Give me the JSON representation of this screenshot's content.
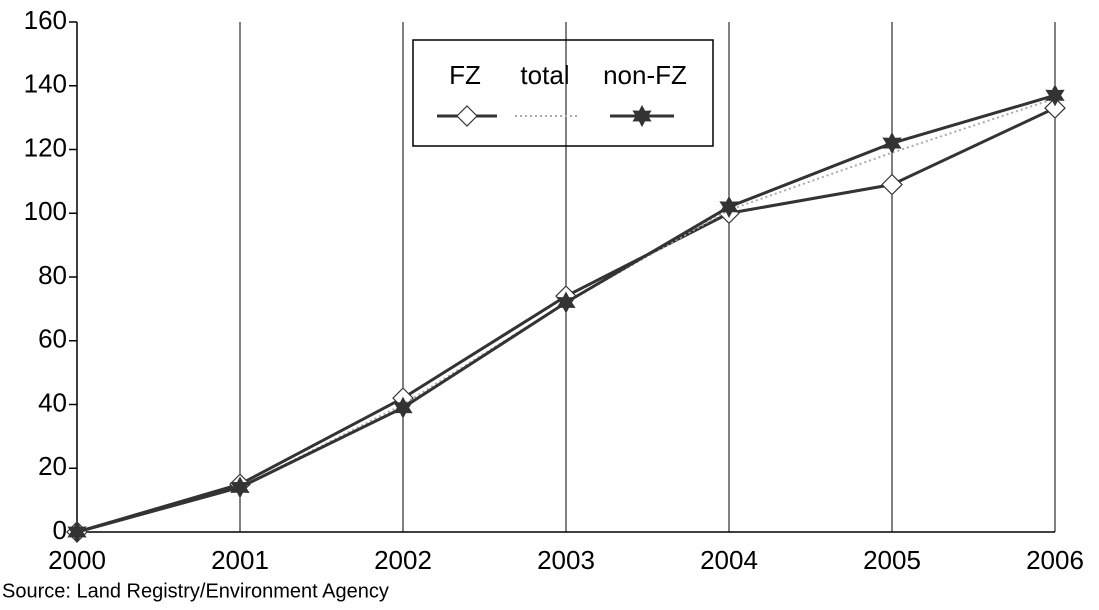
{
  "chart_data": {
    "type": "line",
    "categories": [
      "2000",
      "2001",
      "2002",
      "2003",
      "2004",
      "2005",
      "2006"
    ],
    "series": [
      {
        "name": "FZ",
        "color": "#333333",
        "marker": "diamond",
        "dashed": false,
        "values": [
          0,
          15,
          42,
          74,
          100,
          109,
          133
        ]
      },
      {
        "name": "total",
        "color": "#aaaaaa",
        "marker": "none",
        "dashed": true,
        "values": [
          0,
          14,
          40,
          72,
          101,
          119,
          136
        ]
      },
      {
        "name": "non-FZ",
        "color": "#333333",
        "marker": "star",
        "dashed": false,
        "values": [
          0,
          14,
          39,
          72,
          102,
          122,
          137
        ]
      }
    ],
    "ylim": [
      0,
      160
    ],
    "yticks": [
      0,
      20,
      40,
      60,
      80,
      100,
      120,
      140,
      160
    ],
    "grid": "x",
    "legend": "top-center",
    "source": "Source: Land Registry/Environment Agency"
  }
}
